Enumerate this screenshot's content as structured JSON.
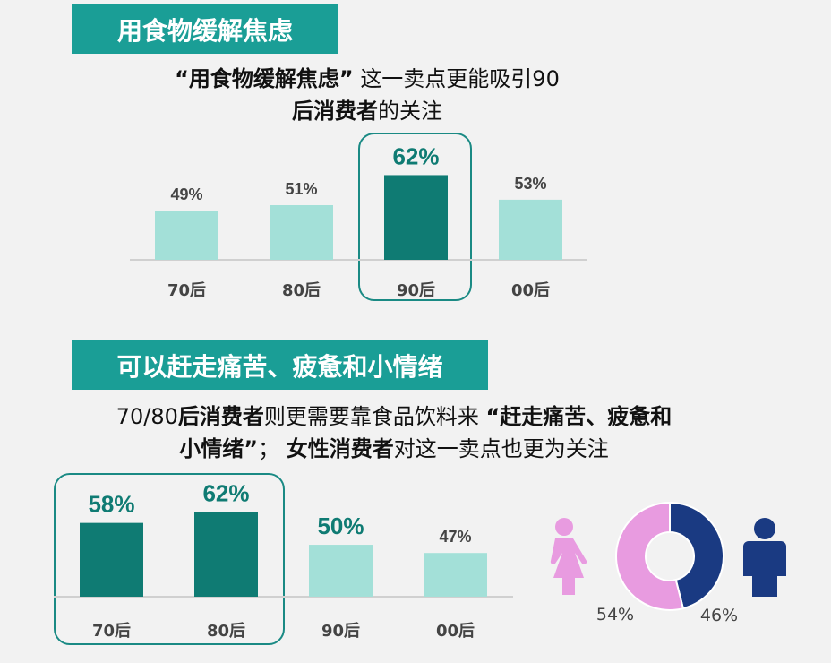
{
  "section1": {
    "header": "用食物缓解焦虑",
    "subtitle_bold1": "“用食物缓解焦虑”",
    "subtitle_text1": "这一卖点更能吸引90",
    "subtitle_bold2": "后消费者",
    "subtitle_text2": "的关注"
  },
  "section2": {
    "header": "可以赶走痛苦、疲惫和小情绪",
    "subtitle_text1": "70/80",
    "subtitle_bold1": "后消费者",
    "subtitle_text2": "则更需要靠食品饮料来",
    "subtitle_bold2": "“赶走痛苦、疲惫和",
    "subtitle_bold3": "小情绪”",
    "subtitle_text3": "；",
    "subtitle_bold4": "女性消费者",
    "subtitle_text4": "对这一卖点也更为关注"
  },
  "colors": {
    "highlight_bar": "#0f7b73",
    "normal_bar": "#a3e0d8",
    "highlight_label": "#0f7b73",
    "normal_label": "#444444",
    "female": "#e89be0",
    "male": "#1a3a82"
  },
  "chart_data": [
    {
      "type": "bar",
      "categories": [
        "70后",
        "80后",
        "90后",
        "00后"
      ],
      "values": [
        49,
        51,
        62,
        53
      ],
      "labels": [
        "49%",
        "51%",
        "62%",
        "53%"
      ],
      "highlighted": [
        "90后"
      ]
    },
    {
      "type": "bar",
      "categories": [
        "70后",
        "80后",
        "90后",
        "00后"
      ],
      "values": [
        58,
        62,
        50,
        47
      ],
      "labels": [
        "58%",
        "62%",
        "50%",
        "47%"
      ],
      "highlighted": [
        "70后",
        "80后"
      ],
      "teal_labels": [
        "70后",
        "80后",
        "90后"
      ]
    },
    {
      "type": "pie",
      "donut": true,
      "slices": [
        {
          "name": "female",
          "value": 54,
          "label": "54%",
          "icon": "female-icon"
        },
        {
          "name": "male",
          "value": 46,
          "label": "46%",
          "icon": "male-icon"
        }
      ]
    }
  ]
}
